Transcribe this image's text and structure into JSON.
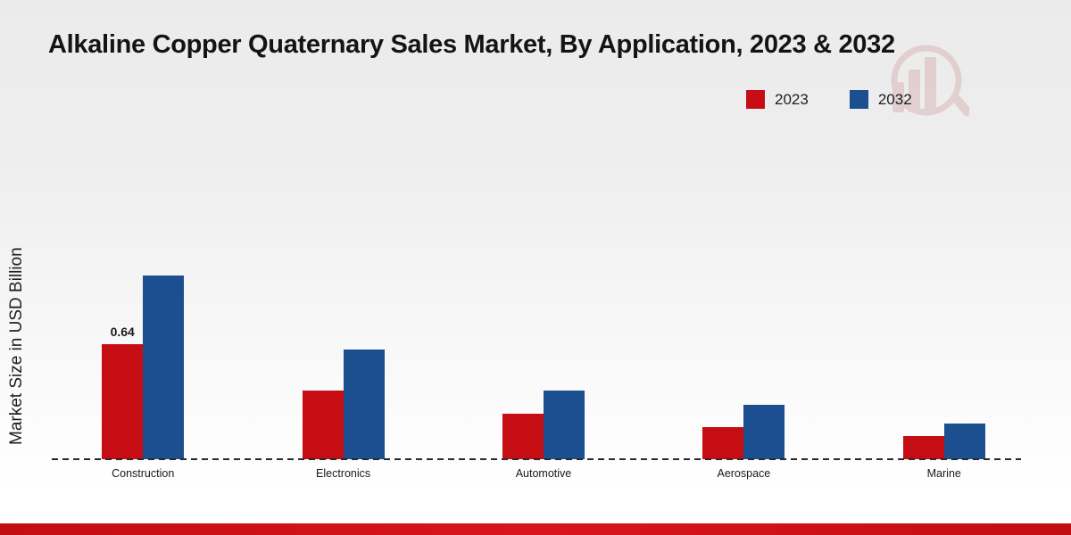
{
  "page": {
    "title": "Alkaline Copper Quaternary Sales Market, By Application, 2023 & 2032"
  },
  "colors": {
    "series_2023": "#c60d13",
    "series_2032": "#1b4f8f",
    "footer_bar": "#c20d12",
    "baseline": "#2a2a2a",
    "watermark": "#b0373c"
  },
  "legend": {
    "items": [
      {
        "label": "2023",
        "color": "#c60d13"
      },
      {
        "label": "2032",
        "color": "#1b4f8f"
      }
    ]
  },
  "chart_data": {
    "type": "bar",
    "title": "Alkaline Copper Quaternary Sales Market, By Application, 2023 & 2032",
    "xlabel": "",
    "ylabel": "Market Size in USD Billion",
    "categories": [
      "Construction",
      "Electronics",
      "Automotive",
      "Aerospace",
      "Marine"
    ],
    "series": [
      {
        "name": "2023",
        "color": "#c60d13",
        "values": [
          0.64,
          0.38,
          0.25,
          0.18,
          0.13
        ]
      },
      {
        "name": "2032",
        "color": "#1b4f8f",
        "values": [
          1.02,
          0.61,
          0.38,
          0.3,
          0.2
        ]
      }
    ],
    "ylim": [
      0,
      1.1
    ],
    "grid": false,
    "axis_line_style": "dashed-baseline-only",
    "legend_position": "top-right",
    "value_labels": [
      {
        "series": "2023",
        "category": "Construction",
        "text": "0.64"
      }
    ]
  },
  "icons": {
    "watermark": "bar-chart-magnifier-logo"
  }
}
